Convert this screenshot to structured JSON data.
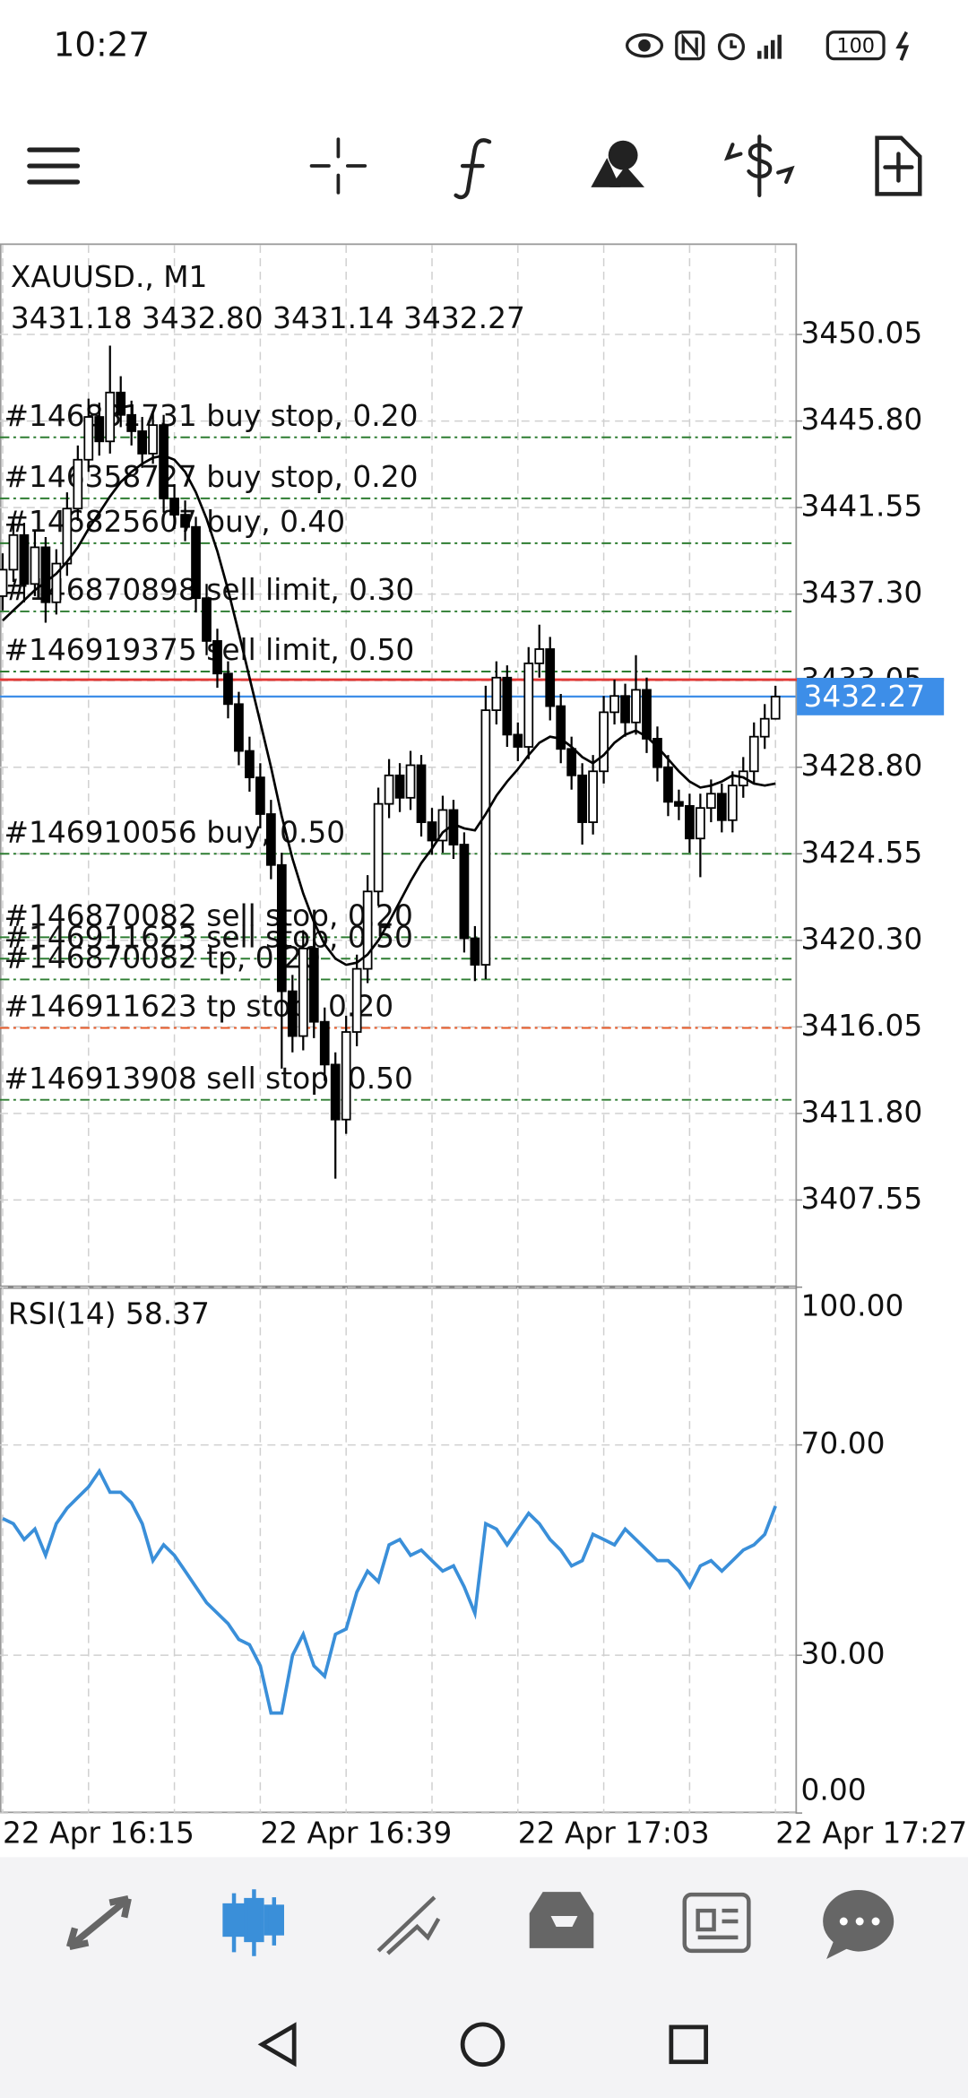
{
  "status_bar": {
    "time": "10:27",
    "battery": 100
  },
  "chart_data": [
    {
      "type": "candlestick",
      "title": "XAUUSD., M1",
      "subtitle": "3431.18 3432.80 3431.14 3432.27",
      "categories": [
        "22 Apr 16:15",
        null,
        null,
        null,
        null,
        null,
        null,
        null,
        null,
        null,
        null,
        null,
        null,
        null,
        null,
        null,
        null,
        null,
        null,
        null,
        null,
        null,
        null,
        null,
        "22 Apr 16:39",
        null,
        null,
        null,
        null,
        null,
        null,
        null,
        null,
        null,
        null,
        null,
        null,
        null,
        null,
        null,
        null,
        null,
        null,
        null,
        null,
        null,
        null,
        null,
        "22 Apr 17:03",
        null,
        null,
        null,
        null,
        null,
        null,
        null,
        null,
        null,
        null,
        null,
        null,
        null,
        null,
        null,
        null,
        null,
        null,
        null,
        null,
        null,
        null,
        null,
        "22 Apr 17:27"
      ],
      "open": [
        3437.2,
        3438.5,
        3440.2,
        3437.8,
        3439.6,
        3436.9,
        3438.8,
        3441.5,
        3443.9,
        3446.0,
        3444.8,
        3447.2,
        3446.1,
        3445.3,
        3444.2,
        3445.6,
        3442.0,
        3441.2,
        3440.6,
        3437.1,
        3435.0,
        3433.4,
        3431.9,
        3429.6,
        3428.3,
        3426.5,
        3424.0,
        3417.8,
        3415.6,
        3419.9,
        3416.3,
        3414.2,
        3411.5,
        3415.8,
        3418.9,
        3422.7,
        3427.0,
        3428.4,
        3427.3,
        3428.9,
        3426.1,
        3425.2,
        3426.7,
        3425.0,
        3420.4,
        3419.1,
        3431.6,
        3433.2,
        3430.4,
        3429.8,
        3433.9,
        3434.6,
        3431.8,
        3429.7,
        3428.4,
        3426.1,
        3428.6,
        3431.5,
        3432.3,
        3431.0,
        3432.6,
        3430.2,
        3428.8,
        3427.1,
        3426.9,
        3425.3,
        3426.8,
        3427.5,
        3426.2,
        3427.9,
        3428.6,
        3430.3,
        3431.18
      ],
      "high": [
        3439.3,
        3441.0,
        3440.8,
        3440.4,
        3440.1,
        3439.5,
        3442.3,
        3444.6,
        3446.9,
        3446.7,
        3449.5,
        3448.0,
        3446.8,
        3446.0,
        3446.3,
        3446.1,
        3442.7,
        3441.9,
        3441.1,
        3437.8,
        3435.6,
        3434.0,
        3432.5,
        3430.3,
        3429.0,
        3427.2,
        3424.6,
        3418.6,
        3420.8,
        3420.4,
        3417.0,
        3414.8,
        3416.6,
        3419.6,
        3423.5,
        3427.8,
        3429.2,
        3429.0,
        3429.6,
        3429.4,
        3426.8,
        3427.4,
        3427.2,
        3425.6,
        3421.0,
        3432.8,
        3434.0,
        3433.8,
        3431.0,
        3434.7,
        3435.8,
        3435.2,
        3432.4,
        3430.3,
        3429.0,
        3429.4,
        3432.3,
        3433.1,
        3432.9,
        3434.3,
        3433.2,
        3430.8,
        3429.4,
        3427.7,
        3427.5,
        3427.5,
        3428.2,
        3428.0,
        3428.6,
        3429.3,
        3431.0,
        3431.9,
        3432.8
      ],
      "low": [
        3436.5,
        3437.9,
        3436.9,
        3437.2,
        3435.9,
        3436.3,
        3438.2,
        3440.9,
        3443.3,
        3444.1,
        3444.2,
        3445.5,
        3444.6,
        3443.5,
        3443.7,
        3441.3,
        3440.5,
        3439.9,
        3436.4,
        3434.3,
        3432.7,
        3431.2,
        3428.9,
        3427.6,
        3425.8,
        3423.3,
        3414.0,
        3414.8,
        3414.9,
        3415.5,
        3413.4,
        3408.6,
        3410.8,
        3415.1,
        3418.2,
        3422.0,
        3426.3,
        3426.6,
        3426.7,
        3425.4,
        3424.5,
        3424.6,
        3424.3,
        3419.7,
        3418.3,
        3418.4,
        3430.9,
        3429.8,
        3429.1,
        3429.2,
        3433.2,
        3431.1,
        3429.0,
        3427.7,
        3425.0,
        3425.5,
        3428.0,
        3430.9,
        3430.3,
        3430.4,
        3429.5,
        3428.1,
        3426.4,
        3426.2,
        3424.6,
        3423.4,
        3426.1,
        3425.6,
        3425.6,
        3427.3,
        3428.0,
        3429.7,
        3431.14
      ],
      "close": [
        3438.5,
        3440.2,
        3437.8,
        3439.6,
        3436.9,
        3438.8,
        3441.5,
        3443.9,
        3446.0,
        3444.8,
        3447.2,
        3446.1,
        3445.3,
        3444.2,
        3445.6,
        3442.0,
        3441.2,
        3440.6,
        3437.1,
        3435.0,
        3433.4,
        3431.9,
        3429.6,
        3428.3,
        3426.5,
        3424.0,
        3417.8,
        3415.6,
        3419.9,
        3416.3,
        3414.2,
        3411.5,
        3415.8,
        3418.9,
        3422.7,
        3427.0,
        3428.4,
        3427.3,
        3428.9,
        3426.1,
        3425.2,
        3426.7,
        3425.0,
        3420.4,
        3419.1,
        3431.6,
        3433.2,
        3430.4,
        3429.8,
        3433.9,
        3434.6,
        3431.8,
        3429.7,
        3428.4,
        3426.1,
        3428.6,
        3431.5,
        3432.3,
        3431.0,
        3432.6,
        3430.2,
        3428.8,
        3427.1,
        3426.9,
        3425.3,
        3426.8,
        3427.5,
        3426.2,
        3427.9,
        3428.6,
        3430.3,
        3431.18,
        3432.27
      ],
      "overlays": [
        {
          "color": "#000000",
          "values": [
            3436.0,
            3436.5,
            3437.0,
            3437.5,
            3437.9,
            3438.3,
            3438.9,
            3439.6,
            3440.5,
            3441.3,
            3442.1,
            3442.8,
            3443.3,
            3443.7,
            3444.0,
            3444.1,
            3443.9,
            3443.3,
            3442.3,
            3441.0,
            3439.4,
            3437.5,
            3435.4,
            3433.2,
            3431.0,
            3428.8,
            3426.4,
            3424.3,
            3422.6,
            3421.2,
            3420.1,
            3419.4,
            3419.1,
            3419.2,
            3419.6,
            3420.3,
            3421.2,
            3422.2,
            3423.2,
            3424.1,
            3424.8,
            3425.6,
            3426.0,
            3425.8,
            3425.7,
            3426.5,
            3427.4,
            3428.1,
            3428.7,
            3429.4,
            3430.0,
            3430.3,
            3430.2,
            3429.8,
            3429.3,
            3429.0,
            3429.4,
            3430.0,
            3430.4,
            3430.6,
            3430.3,
            3429.8,
            3429.2,
            3428.6,
            3428.1,
            3427.8,
            3427.9,
            3428.1,
            3428.4,
            3428.3,
            3428.0,
            3427.9,
            3428.0
          ]
        }
      ],
      "levels": [
        {
          "label": "#146831731 buy stop, 0.20",
          "price": 3445.0,
          "color": "#2e7d32"
        },
        {
          "label": "#146358727 buy stop, 0.20",
          "price": 3442.0,
          "color": "#2e7d32"
        },
        {
          "label": "#146825607 buy, 0.40",
          "price": 3439.8,
          "color": "#2e7d32"
        },
        {
          "label": "#146870898 sell limit, 0.30",
          "price": 3436.45,
          "color": "#2e7d32"
        },
        {
          "label": "#146919375 sell limit, 0.50",
          "price": 3433.5,
          "color": "#2e7d32"
        },
        {
          "label": "#146910056 buy, 0.50",
          "price": 3424.55,
          "color": "#2e7d32"
        },
        {
          "label": "#146870082 sell stop, 0.20",
          "price": 3420.45,
          "color": "#2e7d32"
        },
        {
          "label": "#146911623 sell stop, 0.50",
          "price": 3419.4,
          "color": "#2e7d32"
        },
        {
          "label": "#146870082 tp, 0.20",
          "price": 3418.38,
          "color": "#2e7d32"
        },
        {
          "label": "#146911623 tp stop, 0.20",
          "price": 3416.0,
          "color": "#e65a28"
        },
        {
          "label": "#146913908 sell stop, 0.50",
          "price": 3412.47,
          "color": "#2e7d32"
        }
      ],
      "ask_line": {
        "value": 3433.1,
        "color": "#e53935"
      },
      "last_price": 3432.27,
      "last_price_color": "#3d8ee8",
      "ylim": [
        3403.27,
        3454.45
      ],
      "yticks": [
        {
          "value": 3450.05,
          "label": "3450.05"
        },
        {
          "value": 3445.8,
          "label": "3445.80"
        },
        {
          "value": 3441.55,
          "label": "3441.55"
        },
        {
          "value": 3437.3,
          "label": "3437.30"
        },
        {
          "value": 3433.05,
          "label": "3433.05"
        },
        {
          "value": 3428.8,
          "label": "3428.80"
        },
        {
          "value": 3424.55,
          "label": "3424.55"
        },
        {
          "value": 3420.3,
          "label": "3420.30"
        },
        {
          "value": 3416.05,
          "label": "3416.05"
        },
        {
          "value": 3411.8,
          "label": "3411.80"
        },
        {
          "value": 3407.55,
          "label": "3407.55"
        }
      ],
      "grid": true
    },
    {
      "type": "line",
      "title": "RSI(14) 58.37",
      "color": "#3a8fd9",
      "values": [
        56,
        55,
        52,
        54,
        49,
        55,
        58,
        60,
        62,
        65,
        61,
        61,
        59,
        55,
        48,
        51,
        49,
        46,
        43,
        40,
        38,
        36,
        33,
        32,
        28,
        19,
        19,
        30,
        34,
        28,
        26,
        34,
        35,
        42,
        46,
        44,
        51,
        52,
        49,
        50,
        48,
        46,
        47,
        43,
        38,
        55,
        54,
        51,
        54,
        57,
        55,
        52,
        50,
        47,
        48,
        53,
        52,
        51,
        54,
        52,
        50,
        48,
        48,
        46,
        43,
        47,
        48,
        46,
        48,
        50,
        51,
        53,
        58.37
      ],
      "ylim": [
        0,
        100
      ],
      "yticks": [
        {
          "value": 100,
          "label": "100.00"
        },
        {
          "value": 70,
          "label": "70.00"
        },
        {
          "value": 30,
          "label": "30.00"
        },
        {
          "value": 0,
          "label": "0.00"
        }
      ],
      "grid": true
    }
  ]
}
